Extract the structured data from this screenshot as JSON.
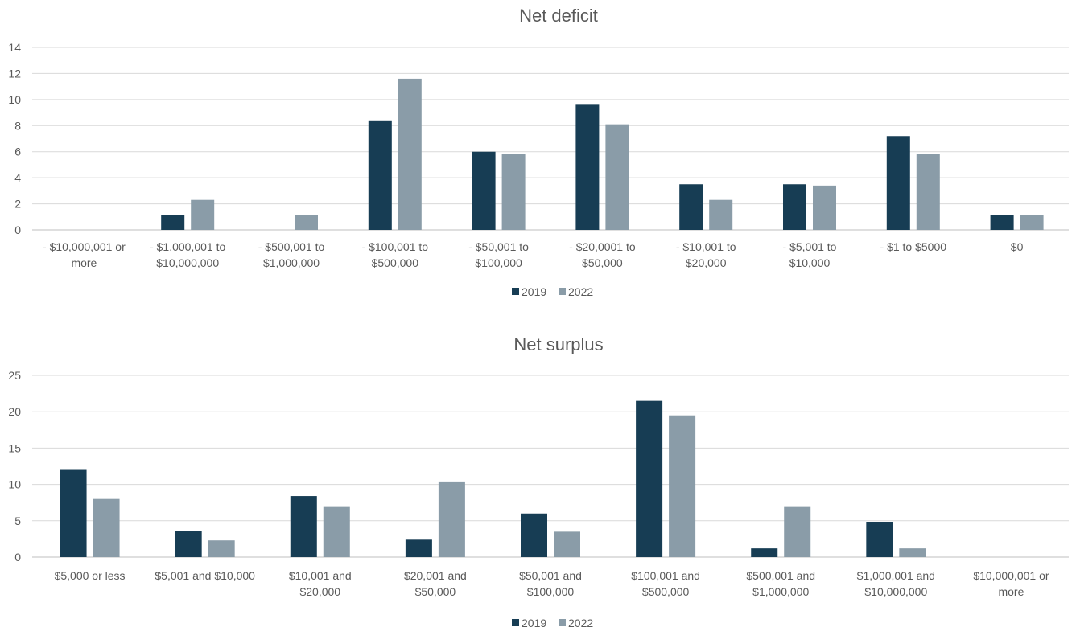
{
  "colors": {
    "s2019": "#173d54",
    "s2022": "#8a9ca8"
  },
  "chart_data": [
    {
      "type": "bar",
      "title": "Net deficit",
      "categories": [
        [
          "- $10,000,001 or",
          "more"
        ],
        [
          "- $1,000,001 to",
          "$10,000,000"
        ],
        [
          "- $500,001 to",
          "$1,000,000"
        ],
        [
          "- $100,001 to",
          "$500,000"
        ],
        [
          "- $50,001 to",
          "$100,000"
        ],
        [
          "- $20,0001 to",
          "$50,000"
        ],
        [
          "- $10,001 to",
          "$20,000"
        ],
        [
          "- $5,001 to",
          "$10,000"
        ],
        [
          "- $1 to $5000"
        ],
        [
          "$0"
        ]
      ],
      "series": [
        {
          "name": "2019",
          "values": [
            0,
            1.15,
            0,
            8.4,
            6.0,
            9.6,
            3.5,
            3.5,
            7.2,
            1.15
          ]
        },
        {
          "name": "2022",
          "values": [
            0,
            2.3,
            1.15,
            11.6,
            5.8,
            8.1,
            2.3,
            3.4,
            5.8,
            1.15
          ]
        }
      ],
      "ylim": [
        0,
        14
      ],
      "yticks": [
        0,
        2,
        4,
        6,
        8,
        10,
        12,
        14
      ],
      "grid": true,
      "legend": "bottom"
    },
    {
      "type": "bar",
      "title": "Net surplus",
      "categories": [
        [
          "$5,000 or less"
        ],
        [
          "$5,001 and $10,000"
        ],
        [
          "$10,001 and",
          "$20,000"
        ],
        [
          "$20,001 and",
          "$50,000"
        ],
        [
          "$50,001 and",
          "$100,000"
        ],
        [
          "$100,001 and",
          "$500,000"
        ],
        [
          "$500,001 and",
          "$1,000,000"
        ],
        [
          "$1,000,001 and",
          "$10,000,000"
        ],
        [
          "$10,000,001 or",
          "more"
        ]
      ],
      "series": [
        {
          "name": "2019",
          "values": [
            12.0,
            3.6,
            8.4,
            2.4,
            6.0,
            21.5,
            1.2,
            4.8,
            0
          ]
        },
        {
          "name": "2022",
          "values": [
            8.0,
            2.3,
            6.9,
            10.3,
            3.5,
            19.5,
            6.9,
            1.2,
            0
          ]
        }
      ],
      "ylim": [
        0,
        25
      ],
      "yticks": [
        0,
        5,
        10,
        15,
        20,
        25
      ],
      "grid": true,
      "legend": "bottom"
    }
  ]
}
